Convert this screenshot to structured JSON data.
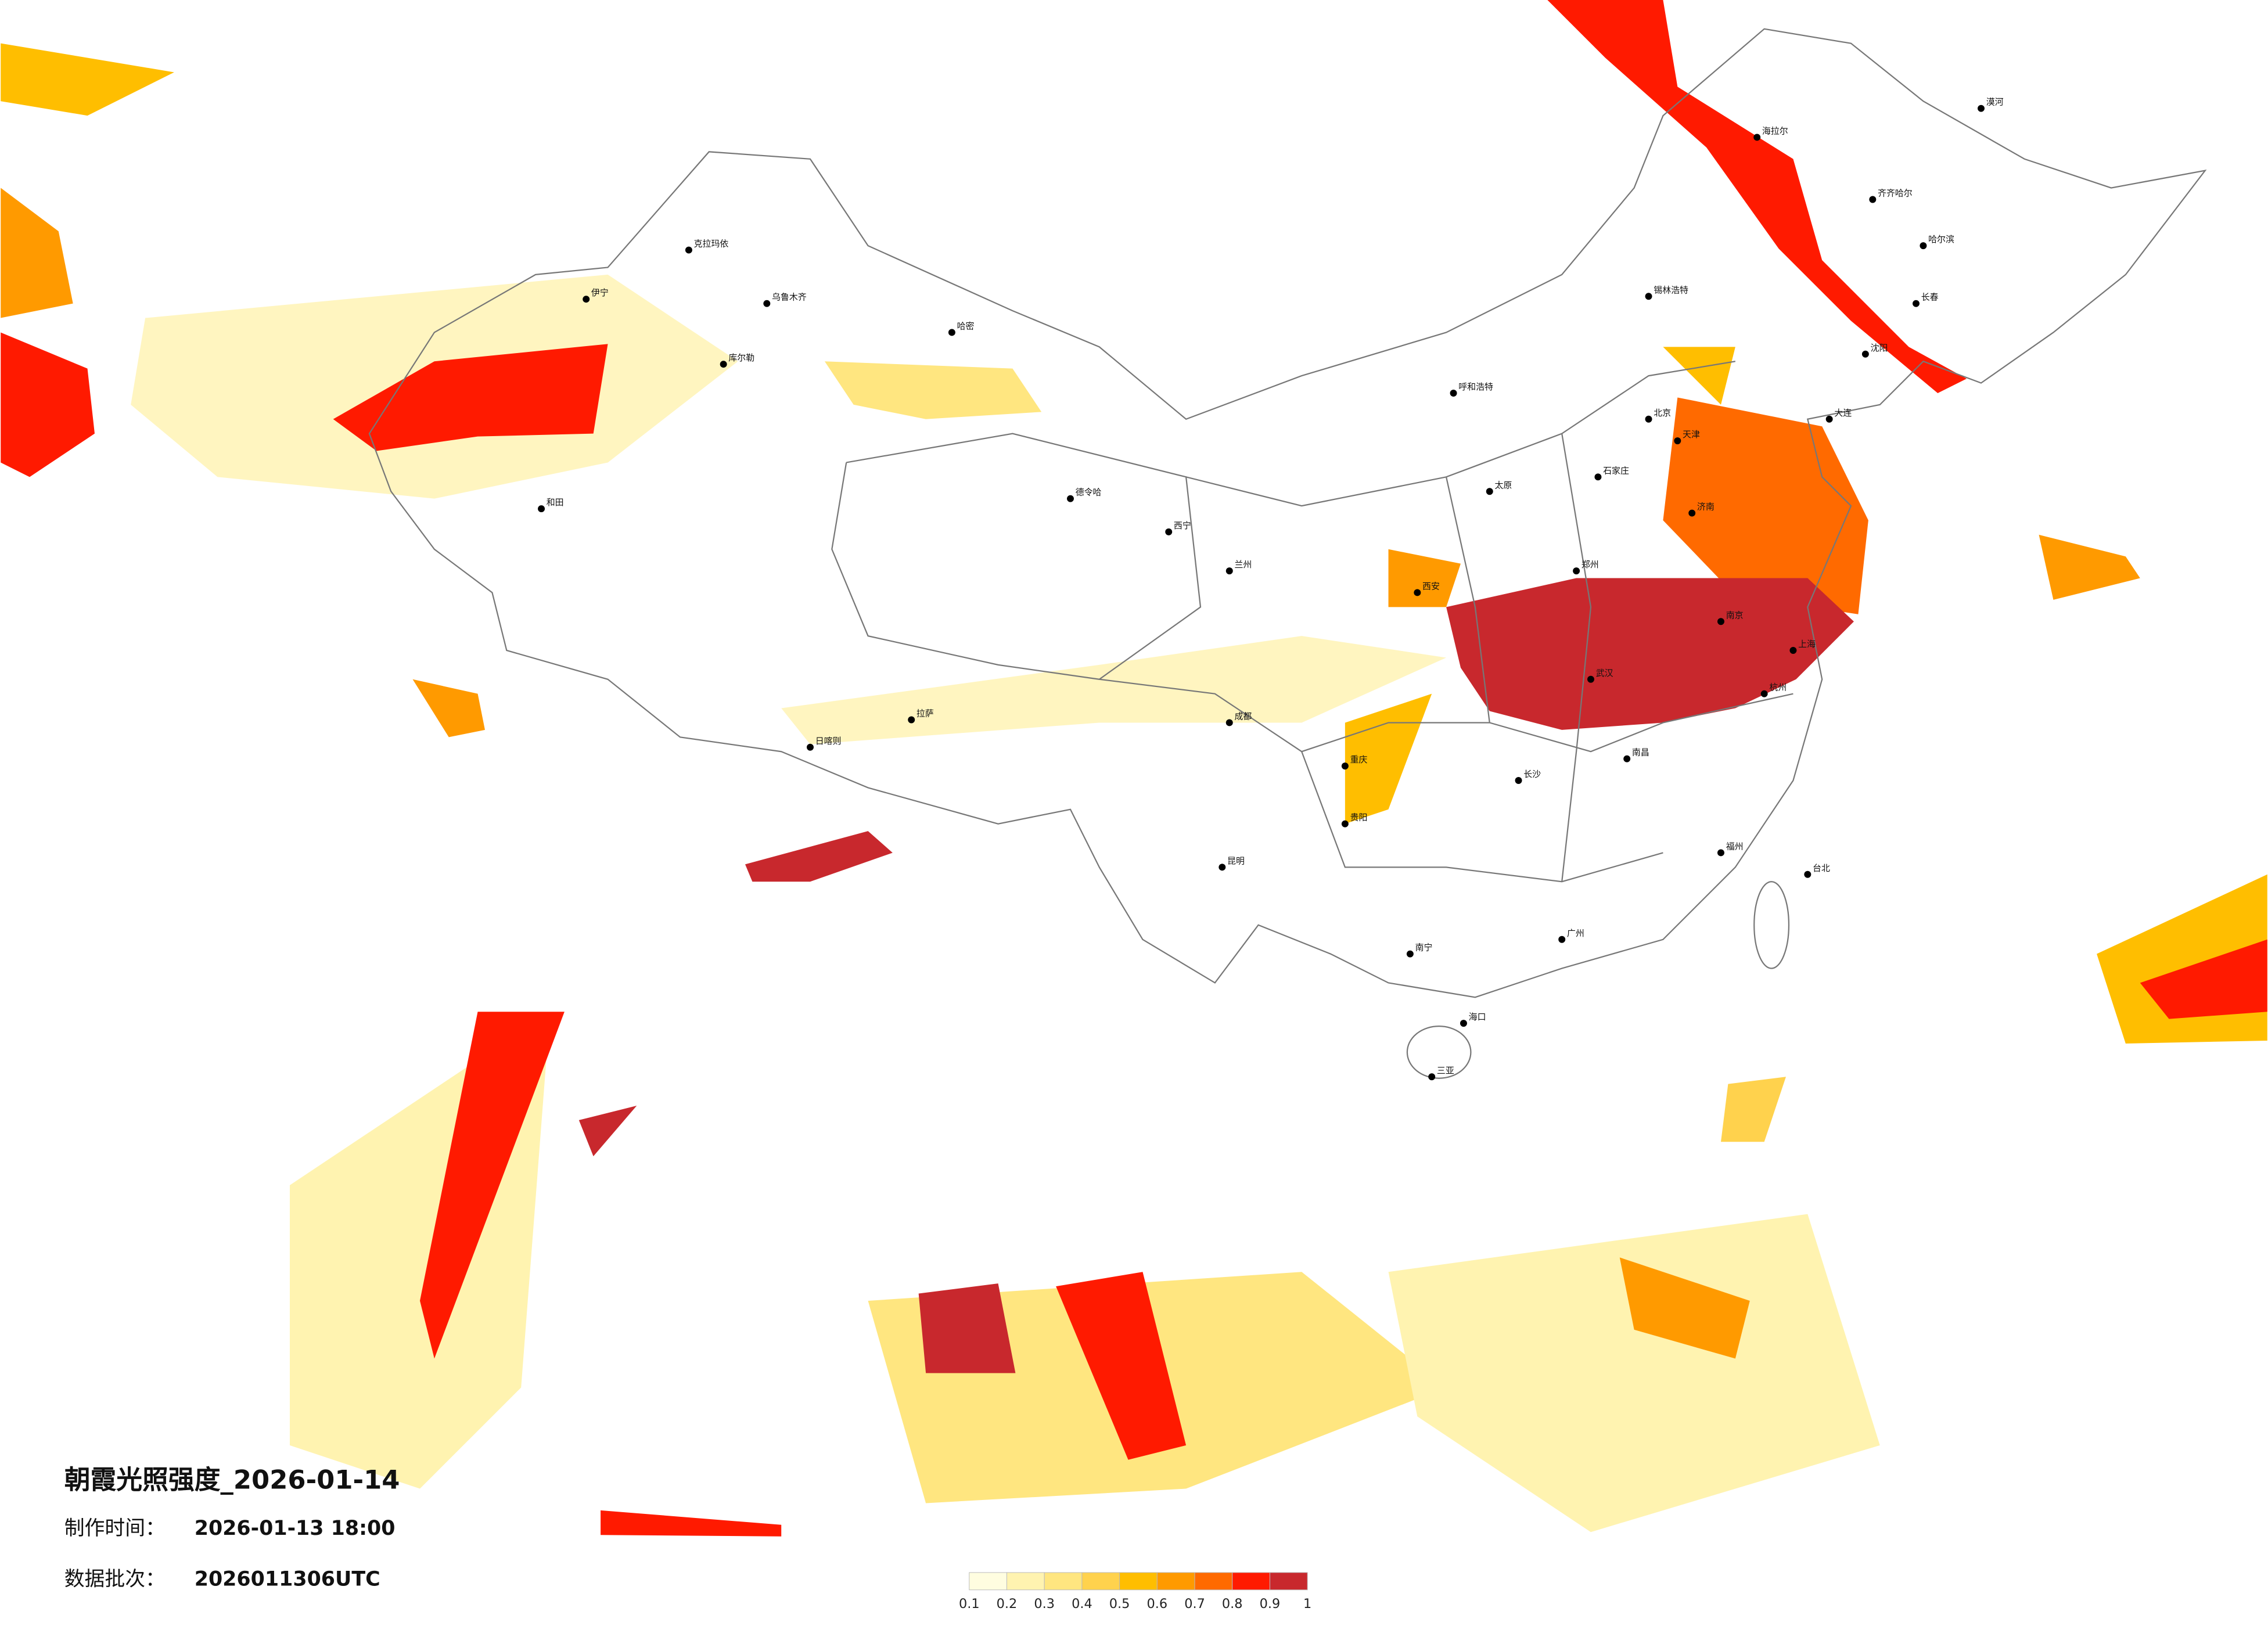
{
  "title": "朝霞光照强度_2026-01-14",
  "made_time": {
    "label": "制作时间：",
    "value": "2026-01-13 18:00"
  },
  "batch": {
    "label": "数据批次：",
    "value": "2026011306UTC"
  },
  "legend": {
    "ticks": [
      0.1,
      0.2,
      0.3,
      0.4,
      0.5,
      0.6,
      0.7,
      0.8,
      0.9,
      1
    ],
    "colors": [
      "#fffde0",
      "#fff3b0",
      "#ffe680",
      "#ffd24d",
      "#ffbe00",
      "#ff9a00",
      "#ff6a00",
      "#ff1a00",
      "#c8282d"
    ]
  },
  "cities": [
    "伊宁",
    "克拉玛依",
    "乌鲁木齐",
    "哈密",
    "库尔勒",
    "和田",
    "德令哈",
    "拉萨",
    "日喀则",
    "西宁",
    "兰州",
    "呼和浩特",
    "北京",
    "天津",
    "石家庄",
    "太原",
    "济南",
    "郑州",
    "西安",
    "成都",
    "重庆",
    "武汉",
    "南京",
    "上海",
    "杭州",
    "长沙",
    "南昌",
    "福州",
    "广州",
    "南宁",
    "昆明",
    "贵阳",
    "海口",
    "三亚",
    "台北",
    "哈尔滨",
    "长春",
    "沈阳",
    "大连",
    "齐齐哈尔",
    "海拉尔",
    "锡林浩特",
    "漠河"
  ]
}
